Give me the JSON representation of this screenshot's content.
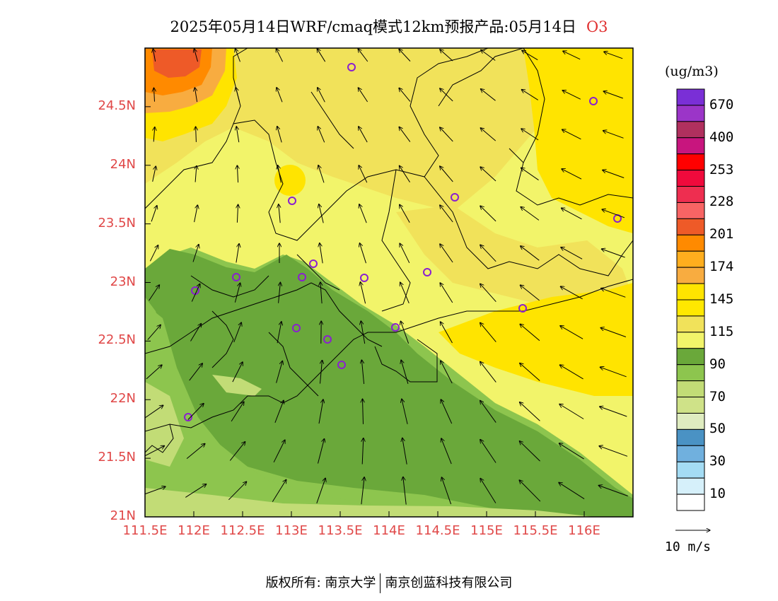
{
  "title": {
    "text": "2025年05月14日WRF/cmaq模式12km预报产品:05月14日",
    "pollutant": "O3"
  },
  "map": {
    "lat_labels": [
      "24.5N",
      "24N",
      "23.5N",
      "23N",
      "22.5N",
      "22N",
      "21.5N",
      "21N"
    ],
    "lat_values": [
      24.5,
      24,
      23.5,
      23,
      22.5,
      22,
      21.5,
      21
    ],
    "lon_labels": [
      "111.5E",
      "112E",
      "112.5E",
      "113E",
      "113.5E",
      "114E",
      "114.5E",
      "115E",
      "115.5E",
      "116E"
    ],
    "lon_values": [
      111.5,
      112,
      112.5,
      113,
      113.5,
      114,
      114.5,
      115,
      115.5,
      116
    ],
    "lon_range": [
      111.5,
      116.5
    ],
    "lat_range": [
      21,
      25
    ]
  },
  "colorbar": {
    "unit": "(ug/m3)",
    "labels": [
      "670",
      "400",
      "253",
      "228",
      "201",
      "174",
      "145",
      "115",
      "90",
      "70",
      "50",
      "30",
      "10"
    ],
    "colors_top_to_bottom": [
      "#7a2fd6",
      "#9b35c8",
      "#b0305e",
      "#c8157e",
      "#ff0000",
      "#f00a3c",
      "#ee2e50",
      "#f86464",
      "#ee5a28",
      "#ff8a00",
      "#ffae1e",
      "#f8ac40",
      "#ffe400",
      "#ffe800",
      "#f1e25a",
      "#f2f46a",
      "#6aa83a",
      "#8dc54e",
      "#c2dc76",
      "#cfe288",
      "#dfecc0",
      "#4a92c4",
      "#70b0de",
      "#a4dcf4",
      "#d6f0fa",
      "#ffffff"
    ]
  },
  "wind_reference": {
    "label": "10 m/s"
  },
  "copyright": {
    "left": "版权所有: 南京大学",
    "right": "南京创蓝科技有限公司"
  }
}
